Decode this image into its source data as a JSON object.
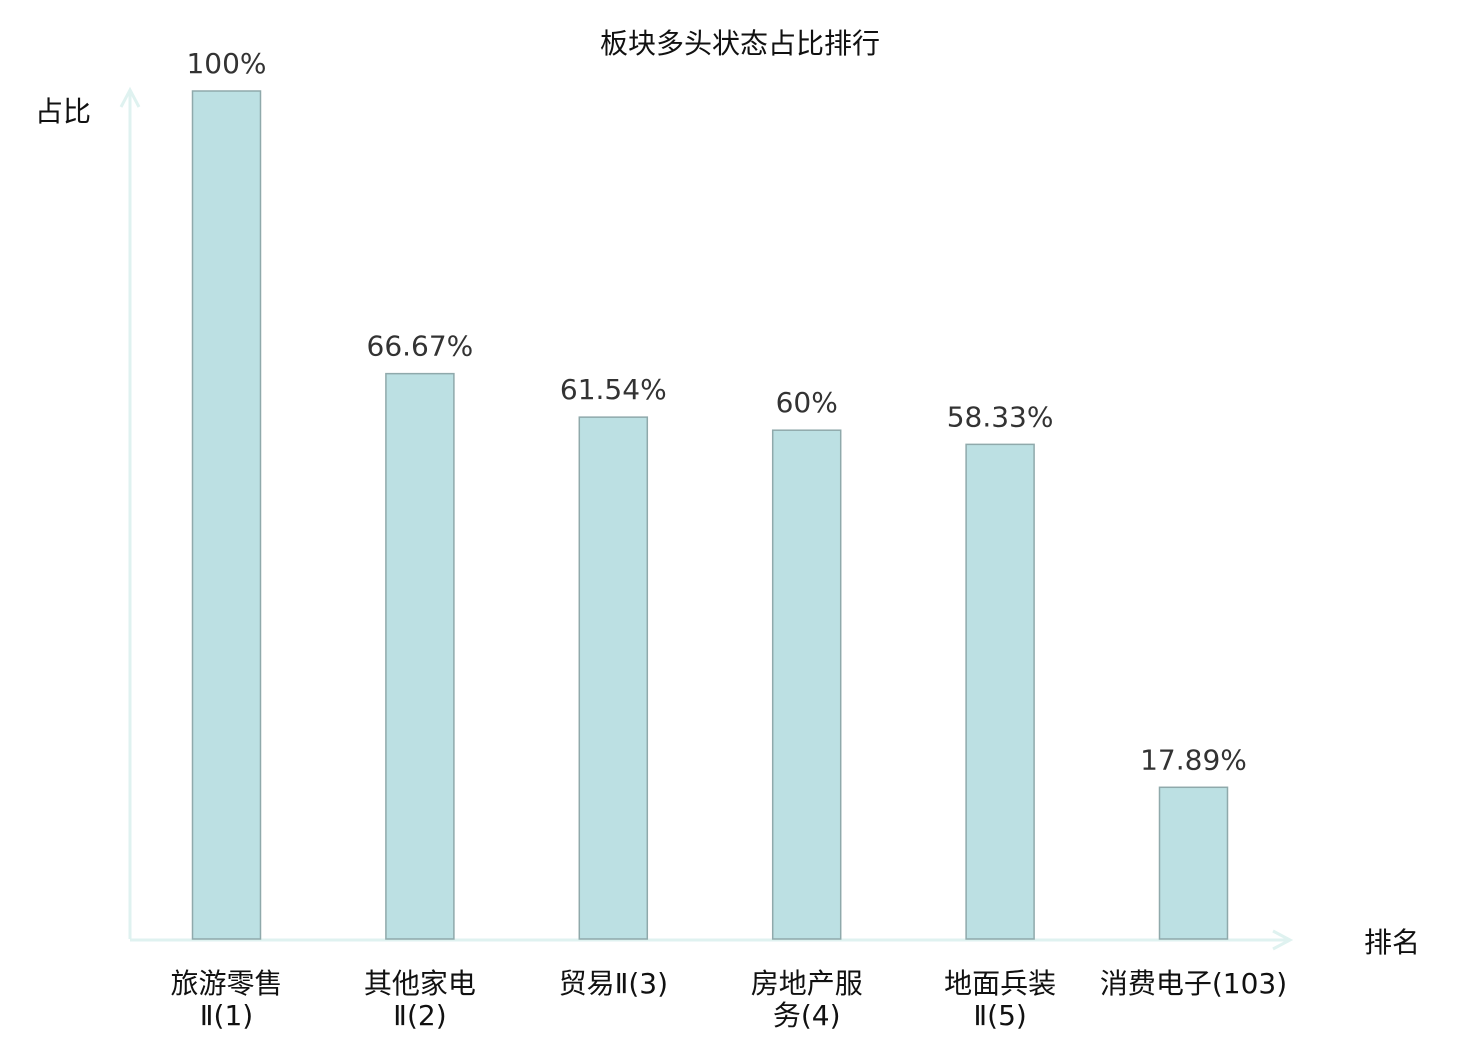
{
  "chart_data": {
    "type": "bar",
    "title": "板块多头状态占比排行",
    "ylabel": "占比",
    "xlabel": "排名",
    "ylim": [
      0,
      100
    ],
    "grid": false,
    "categories": [
      {
        "lines": [
          "旅游零售",
          "Ⅱ(1)"
        ],
        "highlight": false
      },
      {
        "lines": [
          "其他家电",
          "Ⅱ(2)"
        ],
        "highlight": false
      },
      {
        "lines": [
          "贸易Ⅱ(3)"
        ],
        "highlight": false
      },
      {
        "lines": [
          "房地产服",
          "务(4)"
        ],
        "highlight": false
      },
      {
        "lines": [
          "地面兵装",
          "Ⅱ(5)"
        ],
        "highlight": false
      },
      {
        "lines": [
          "消费电子(103)"
        ],
        "highlight": true
      }
    ],
    "values": [
      100,
      66.67,
      61.54,
      60,
      58.33,
      17.89
    ],
    "value_labels": [
      "100%",
      "66.67%",
      "61.54%",
      "60%",
      "58.33%",
      "17.89%"
    ],
    "colors": {
      "bar_fill": "#bce0e3",
      "bar_stroke": "#8fa9ab",
      "axis": "#dff2f0",
      "highlight_label": "#e8141c",
      "label": "#111111"
    }
  }
}
